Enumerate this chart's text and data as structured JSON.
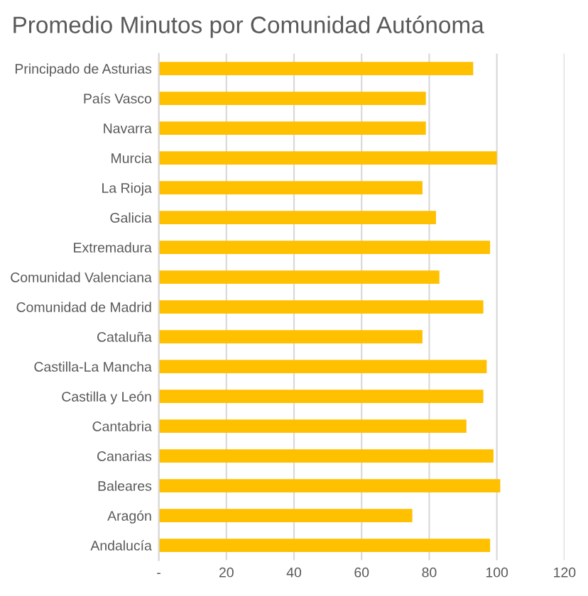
{
  "chart_data": {
    "type": "bar",
    "orientation": "horizontal",
    "title": "Promedio Minutos por Comunidad Autónoma",
    "categories": [
      "Principado de Asturias",
      "País Vasco",
      "Navarra",
      "Murcia",
      "La Rioja",
      "Galicia",
      "Extremadura",
      "Comunidad Valenciana",
      "Comunidad de Madrid",
      "Cataluña",
      "Castilla-La Mancha",
      "Castilla y León",
      "Cantabria",
      "Canarias",
      "Baleares",
      "Aragón",
      "Andalucía"
    ],
    "values": [
      93,
      79,
      79,
      100,
      78,
      82,
      98,
      83,
      96,
      78,
      97,
      96,
      91,
      99,
      101,
      75,
      98
    ],
    "color": "#ffc000",
    "xlim": [
      0,
      120
    ],
    "xticks": [
      {
        "value": 0,
        "label": "-"
      },
      20,
      40,
      60,
      80,
      100,
      120
    ],
    "grid": "x"
  }
}
